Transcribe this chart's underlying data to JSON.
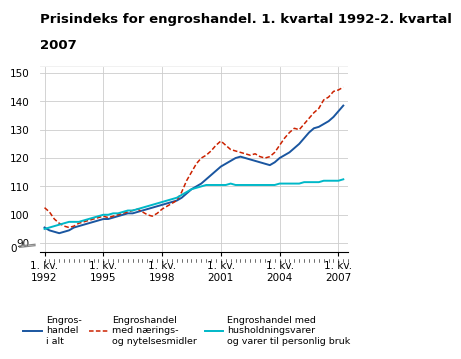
{
  "title_line1": "Prisindeks for engroshandel. 1. kvartal 1992-2. kvartal",
  "title_line2": "2007",
  "title_fontsize": 9.5,
  "ylim": [
    87,
    152
  ],
  "yticks": [
    90,
    100,
    110,
    120,
    130,
    140,
    150
  ],
  "ytick_labels": [
    "90",
    "100",
    "110",
    "120",
    "130",
    "140",
    "150"
  ],
  "y_zero_label": "0",
  "xtick_positions": [
    0,
    12,
    24,
    36,
    48,
    60
  ],
  "xtick_labels": [
    "1. kv.\n1992",
    "1. kv.\n1995",
    "1. kv.\n1998",
    "1. kv.\n2001",
    "1. kv.\n2004",
    "1. kv.\n2007"
  ],
  "background_color": "#ffffff",
  "grid_color": "#cccccc",
  "line1_color": "#1a56a0",
  "line2_color": "#cc2200",
  "line3_color": "#00b8c8",
  "line1_label": "Engros-\nhandel\ni alt",
  "line2_label": "Engroshandel\nmed nærings-\nog nytelsesmidler",
  "line3_label": "Engroshandel med\nhusholdningsvarer\nog varer til personlig bruk",
  "engros_i_alt": [
    95.5,
    94.5,
    94.0,
    93.5,
    94.0,
    94.5,
    95.5,
    96.0,
    96.5,
    97.0,
    97.5,
    98.0,
    98.5,
    98.5,
    99.0,
    99.5,
    100.0,
    100.5,
    100.5,
    101.0,
    101.5,
    102.0,
    102.5,
    103.0,
    103.5,
    104.0,
    104.5,
    105.0,
    106.0,
    107.5,
    109.0,
    110.0,
    111.0,
    112.5,
    114.0,
    115.5,
    117.0,
    118.0,
    119.0,
    120.0,
    120.5,
    120.0,
    119.5,
    119.0,
    118.5,
    118.0,
    117.5,
    118.5,
    120.0,
    121.0,
    122.0,
    123.5,
    125.0,
    127.0,
    129.0,
    130.5,
    131.0,
    132.0,
    133.0,
    134.5,
    136.5,
    138.5
  ],
  "naerings": [
    102.5,
    101.0,
    98.5,
    97.0,
    96.0,
    95.5,
    96.0,
    97.0,
    97.5,
    98.0,
    98.5,
    99.0,
    99.5,
    99.0,
    99.5,
    100.0,
    100.5,
    101.0,
    101.5,
    102.0,
    101.0,
    100.0,
    99.5,
    100.5,
    102.0,
    103.0,
    104.0,
    105.0,
    108.0,
    112.0,
    115.0,
    118.0,
    120.0,
    121.0,
    122.5,
    124.5,
    126.0,
    124.5,
    123.0,
    122.5,
    122.0,
    121.5,
    121.0,
    121.5,
    120.5,
    120.0,
    120.5,
    122.0,
    124.5,
    127.0,
    129.0,
    130.5,
    130.0,
    132.0,
    134.0,
    136.0,
    137.5,
    140.5,
    141.5,
    143.5,
    144.0,
    145.0
  ],
  "husholdning": [
    95.0,
    95.5,
    96.0,
    96.5,
    97.0,
    97.5,
    97.5,
    97.5,
    98.0,
    98.5,
    99.0,
    99.5,
    100.0,
    100.0,
    100.5,
    100.5,
    101.0,
    101.5,
    101.5,
    102.0,
    102.5,
    103.0,
    103.5,
    104.0,
    104.5,
    105.0,
    105.5,
    106.0,
    107.0,
    108.0,
    109.0,
    109.5,
    110.0,
    110.5,
    110.5,
    110.5,
    110.5,
    110.5,
    111.0,
    110.5,
    110.5,
    110.5,
    110.5,
    110.5,
    110.5,
    110.5,
    110.5,
    110.5,
    111.0,
    111.0,
    111.0,
    111.0,
    111.0,
    111.5,
    111.5,
    111.5,
    111.5,
    112.0,
    112.0,
    112.0,
    112.0,
    112.5
  ]
}
